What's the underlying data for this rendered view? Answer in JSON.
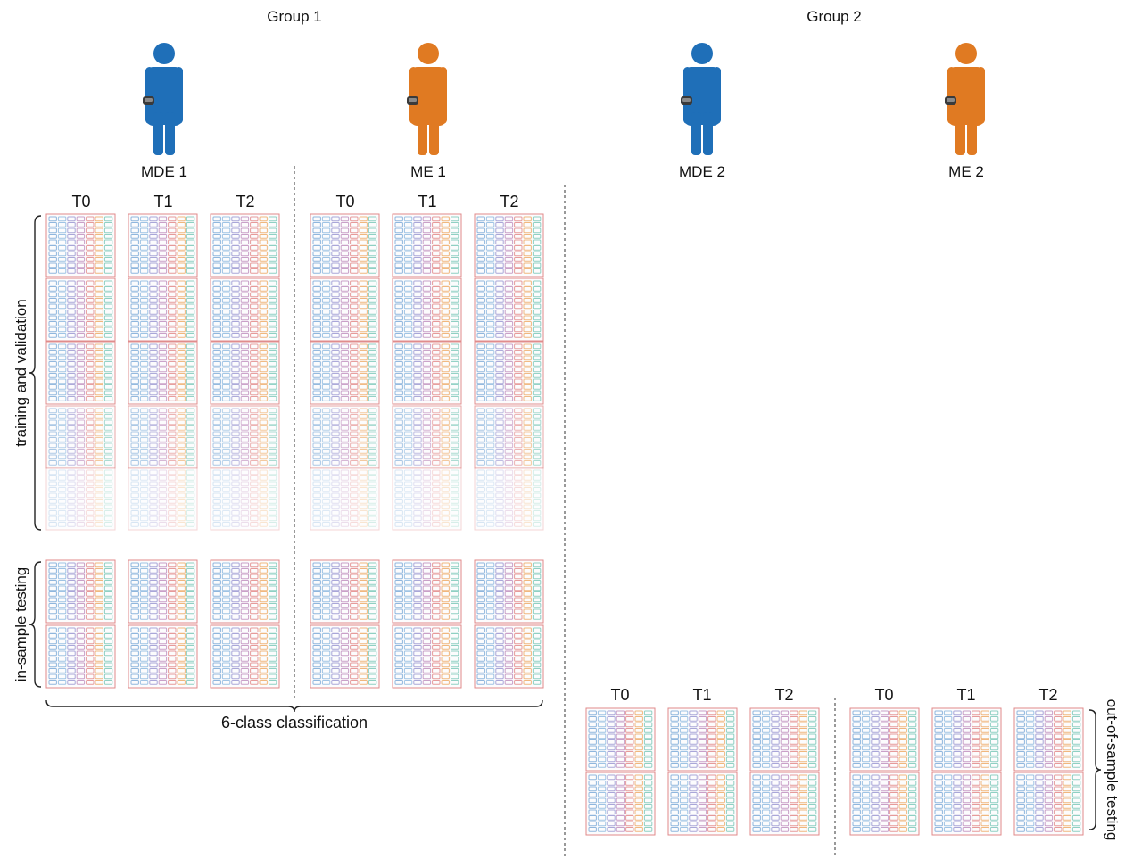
{
  "groups": [
    {
      "label": "Group 1"
    },
    {
      "label": "Group 2"
    }
  ],
  "subjects": [
    {
      "label": "MDE 1",
      "color": "#1f6fb8"
    },
    {
      "label": "ME 1",
      "color": "#e07a22"
    },
    {
      "label": "MDE 2",
      "color": "#1f6fb8"
    },
    {
      "label": "ME 2",
      "color": "#e07a22"
    }
  ],
  "time_labels": [
    "T0",
    "T1",
    "T2"
  ],
  "brackets": {
    "training": "training and validation",
    "in_sample": "in-sample testing",
    "classification": "6-class classification",
    "out_of_sample": "out-of-sample testing"
  },
  "grid_colors": {
    "frame": "#e08a8a",
    "columns": [
      "#8fb6dd",
      "#9fc3e4",
      "#a9a6d8",
      "#c9a0c8",
      "#e69a9a",
      "#f0b77e",
      "#8fd0c3"
    ],
    "device": "#3a3a3a"
  }
}
